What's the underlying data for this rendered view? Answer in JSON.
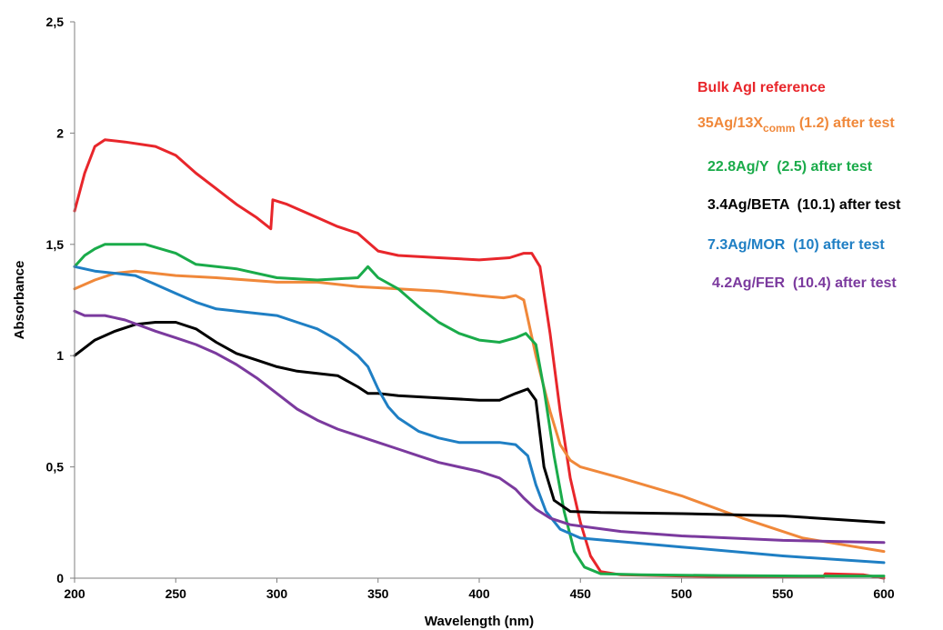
{
  "chart_data": {
    "type": "line",
    "title": "",
    "xlabel": "Wavelength (nm)",
    "ylabel": "Absorbance",
    "xlim": [
      200,
      600
    ],
    "ylim": [
      0,
      2.5
    ],
    "x_ticks": [
      200,
      250,
      300,
      350,
      400,
      450,
      500,
      550,
      600
    ],
    "y_ticks": [
      {
        "value": 0,
        "label": "0"
      },
      {
        "value": 0.5,
        "label": "0,5"
      },
      {
        "value": 1,
        "label": "1"
      },
      {
        "value": 1.5,
        "label": "1,5"
      },
      {
        "value": 2,
        "label": "2"
      },
      {
        "value": 2.5,
        "label": "2,5"
      }
    ],
    "grid": false,
    "legend_position": "right",
    "series": [
      {
        "name": "Bulk AgI reference",
        "color": "#e8262b",
        "points": [
          [
            200,
            1.65
          ],
          [
            205,
            1.82
          ],
          [
            210,
            1.94
          ],
          [
            215,
            1.97
          ],
          [
            225,
            1.96
          ],
          [
            240,
            1.94
          ],
          [
            250,
            1.9
          ],
          [
            260,
            1.82
          ],
          [
            270,
            1.75
          ],
          [
            280,
            1.68
          ],
          [
            290,
            1.62
          ],
          [
            297,
            1.57
          ],
          [
            298,
            1.7
          ],
          [
            305,
            1.68
          ],
          [
            320,
            1.62
          ],
          [
            330,
            1.58
          ],
          [
            340,
            1.55
          ],
          [
            345,
            1.51
          ],
          [
            350,
            1.47
          ],
          [
            360,
            1.45
          ],
          [
            380,
            1.44
          ],
          [
            400,
            1.43
          ],
          [
            415,
            1.44
          ],
          [
            422,
            1.46
          ],
          [
            426,
            1.46
          ],
          [
            430,
            1.4
          ],
          [
            435,
            1.1
          ],
          [
            440,
            0.75
          ],
          [
            445,
            0.45
          ],
          [
            450,
            0.25
          ],
          [
            455,
            0.1
          ],
          [
            460,
            0.03
          ],
          [
            470,
            0.015
          ],
          [
            500,
            0.01
          ],
          [
            540,
            0.005
          ],
          [
            570,
            0.005
          ],
          [
            571,
            0.02
          ],
          [
            590,
            0.015
          ],
          [
            600,
            0.0
          ]
        ]
      },
      {
        "name": "35Ag/13Xcomm (1.2) after test",
        "color": "#f0883a",
        "points": [
          [
            200,
            1.3
          ],
          [
            210,
            1.34
          ],
          [
            220,
            1.37
          ],
          [
            230,
            1.38
          ],
          [
            250,
            1.36
          ],
          [
            270,
            1.35
          ],
          [
            300,
            1.33
          ],
          [
            320,
            1.33
          ],
          [
            340,
            1.31
          ],
          [
            360,
            1.3
          ],
          [
            380,
            1.29
          ],
          [
            400,
            1.27
          ],
          [
            412,
            1.26
          ],
          [
            418,
            1.27
          ],
          [
            422,
            1.25
          ],
          [
            428,
            1.0
          ],
          [
            435,
            0.75
          ],
          [
            440,
            0.6
          ],
          [
            445,
            0.53
          ],
          [
            450,
            0.5
          ],
          [
            470,
            0.45
          ],
          [
            500,
            0.37
          ],
          [
            530,
            0.27
          ],
          [
            560,
            0.18
          ],
          [
            580,
            0.15
          ],
          [
            600,
            0.12
          ]
        ]
      },
      {
        "name": "22.8Ag/Y (2.5) after test",
        "color": "#1aab4a",
        "points": [
          [
            200,
            1.4
          ],
          [
            205,
            1.45
          ],
          [
            210,
            1.48
          ],
          [
            215,
            1.5
          ],
          [
            225,
            1.5
          ],
          [
            235,
            1.5
          ],
          [
            250,
            1.46
          ],
          [
            260,
            1.41
          ],
          [
            280,
            1.39
          ],
          [
            300,
            1.35
          ],
          [
            320,
            1.34
          ],
          [
            340,
            1.35
          ],
          [
            345,
            1.4
          ],
          [
            350,
            1.35
          ],
          [
            360,
            1.3
          ],
          [
            370,
            1.22
          ],
          [
            380,
            1.15
          ],
          [
            390,
            1.1
          ],
          [
            400,
            1.07
          ],
          [
            410,
            1.06
          ],
          [
            418,
            1.08
          ],
          [
            423,
            1.1
          ],
          [
            428,
            1.05
          ],
          [
            432,
            0.85
          ],
          [
            437,
            0.55
          ],
          [
            442,
            0.3
          ],
          [
            447,
            0.12
          ],
          [
            452,
            0.05
          ],
          [
            460,
            0.02
          ],
          [
            480,
            0.015
          ],
          [
            520,
            0.012
          ],
          [
            560,
            0.01
          ],
          [
            600,
            0.01
          ]
        ]
      },
      {
        "name": "3.4Ag/BETA (10.1) after test",
        "color": "#000000",
        "points": [
          [
            200,
            1.0
          ],
          [
            210,
            1.07
          ],
          [
            220,
            1.11
          ],
          [
            230,
            1.14
          ],
          [
            240,
            1.15
          ],
          [
            250,
            1.15
          ],
          [
            260,
            1.12
          ],
          [
            270,
            1.06
          ],
          [
            280,
            1.01
          ],
          [
            290,
            0.98
          ],
          [
            300,
            0.95
          ],
          [
            310,
            0.93
          ],
          [
            320,
            0.92
          ],
          [
            330,
            0.91
          ],
          [
            340,
            0.86
          ],
          [
            345,
            0.83
          ],
          [
            350,
            0.83
          ],
          [
            360,
            0.82
          ],
          [
            380,
            0.81
          ],
          [
            400,
            0.8
          ],
          [
            410,
            0.8
          ],
          [
            418,
            0.83
          ],
          [
            424,
            0.85
          ],
          [
            428,
            0.8
          ],
          [
            432,
            0.5
          ],
          [
            437,
            0.35
          ],
          [
            445,
            0.3
          ],
          [
            460,
            0.295
          ],
          [
            500,
            0.29
          ],
          [
            550,
            0.28
          ],
          [
            600,
            0.25
          ]
        ]
      },
      {
        "name": "7.3Ag/MOR (10) after test",
        "color": "#1f7fc4",
        "points": [
          [
            200,
            1.4
          ],
          [
            210,
            1.38
          ],
          [
            220,
            1.37
          ],
          [
            230,
            1.36
          ],
          [
            240,
            1.32
          ],
          [
            250,
            1.28
          ],
          [
            260,
            1.24
          ],
          [
            270,
            1.21
          ],
          [
            280,
            1.2
          ],
          [
            300,
            1.18
          ],
          [
            310,
            1.15
          ],
          [
            320,
            1.12
          ],
          [
            330,
            1.07
          ],
          [
            340,
            1.0
          ],
          [
            345,
            0.95
          ],
          [
            350,
            0.85
          ],
          [
            355,
            0.77
          ],
          [
            360,
            0.72
          ],
          [
            370,
            0.66
          ],
          [
            380,
            0.63
          ],
          [
            390,
            0.61
          ],
          [
            400,
            0.61
          ],
          [
            410,
            0.61
          ],
          [
            418,
            0.6
          ],
          [
            424,
            0.55
          ],
          [
            428,
            0.42
          ],
          [
            433,
            0.3
          ],
          [
            440,
            0.22
          ],
          [
            450,
            0.18
          ],
          [
            500,
            0.14
          ],
          [
            550,
            0.1
          ],
          [
            600,
            0.07
          ]
        ]
      },
      {
        "name": "4.2Ag/FER (10.4) after test",
        "color": "#7b3a9e",
        "points": [
          [
            200,
            1.2
          ],
          [
            205,
            1.18
          ],
          [
            215,
            1.18
          ],
          [
            225,
            1.16
          ],
          [
            240,
            1.11
          ],
          [
            250,
            1.08
          ],
          [
            260,
            1.05
          ],
          [
            270,
            1.01
          ],
          [
            280,
            0.96
          ],
          [
            290,
            0.9
          ],
          [
            300,
            0.83
          ],
          [
            310,
            0.76
          ],
          [
            320,
            0.71
          ],
          [
            330,
            0.67
          ],
          [
            340,
            0.64
          ],
          [
            350,
            0.61
          ],
          [
            360,
            0.58
          ],
          [
            370,
            0.55
          ],
          [
            380,
            0.52
          ],
          [
            390,
            0.5
          ],
          [
            400,
            0.48
          ],
          [
            410,
            0.45
          ],
          [
            418,
            0.4
          ],
          [
            422,
            0.36
          ],
          [
            428,
            0.31
          ],
          [
            435,
            0.27
          ],
          [
            445,
            0.24
          ],
          [
            470,
            0.21
          ],
          [
            500,
            0.19
          ],
          [
            550,
            0.17
          ],
          [
            600,
            0.16
          ]
        ]
      }
    ],
    "legend": [
      {
        "text": "Bulk AgI reference",
        "color": "#e8262b"
      },
      {
        "text_before": "35Ag/13X",
        "subscript": "comm",
        "text_after": " (1.2) after test",
        "color": "#f0883a"
      },
      {
        "text": "22.8Ag/Y  (2.5) after test",
        "color": "#1aab4a"
      },
      {
        "text": "3.4Ag/BETA  (10.1) after test",
        "color": "#000000"
      },
      {
        "text": "7.3Ag/MOR  (10) after test",
        "color": "#1f7fc4"
      },
      {
        "text": "4.2Ag/FER  (10.4) after test",
        "color": "#7b3a9e"
      }
    ]
  }
}
